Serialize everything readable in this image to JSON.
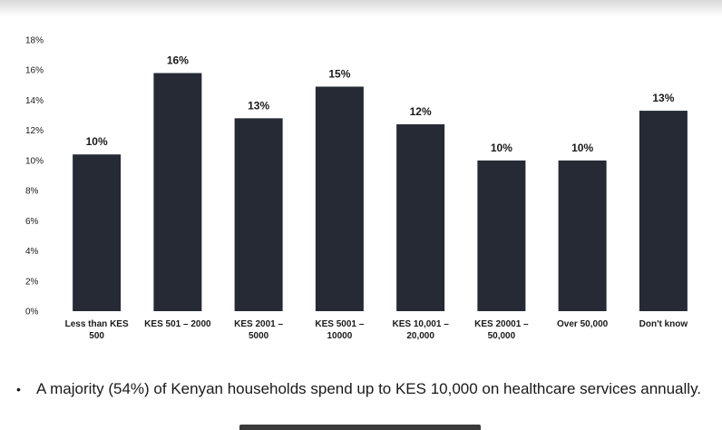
{
  "chart_data": {
    "type": "bar",
    "title": "",
    "xlabel": "",
    "ylabel": "",
    "ylim": [
      0,
      18
    ],
    "y_ticks": [
      "0%",
      "2%",
      "4%",
      "6%",
      "8%",
      "10%",
      "12%",
      "14%",
      "16%",
      "18%"
    ],
    "y_tick_values": [
      0,
      2,
      4,
      6,
      8,
      10,
      12,
      14,
      16,
      18
    ],
    "grid": false,
    "legend": "none",
    "categories": [
      [
        "Less than KES",
        "500"
      ],
      [
        "KES 501 – 2000"
      ],
      [
        "KES 2001 –",
        "5000"
      ],
      [
        "KES 5001 –",
        "10000"
      ],
      [
        "KES 10,001 –",
        "20,000"
      ],
      [
        "KES 20001 –",
        "50,000"
      ],
      [
        "Over 50,000"
      ],
      [
        "Don't know"
      ]
    ],
    "values": [
      10.4,
      15.8,
      12.8,
      14.9,
      12.4,
      10.0,
      10.0,
      13.3
    ],
    "data_labels": [
      "10%",
      "16%",
      "13%",
      "15%",
      "12%",
      "10%",
      "10%",
      "13%"
    ],
    "bar_color": "#252a35"
  },
  "summary": {
    "bullet": "•",
    "text": "A majority (54%) of Kenyan households spend up to KES 10,000 on healthcare services annually."
  }
}
